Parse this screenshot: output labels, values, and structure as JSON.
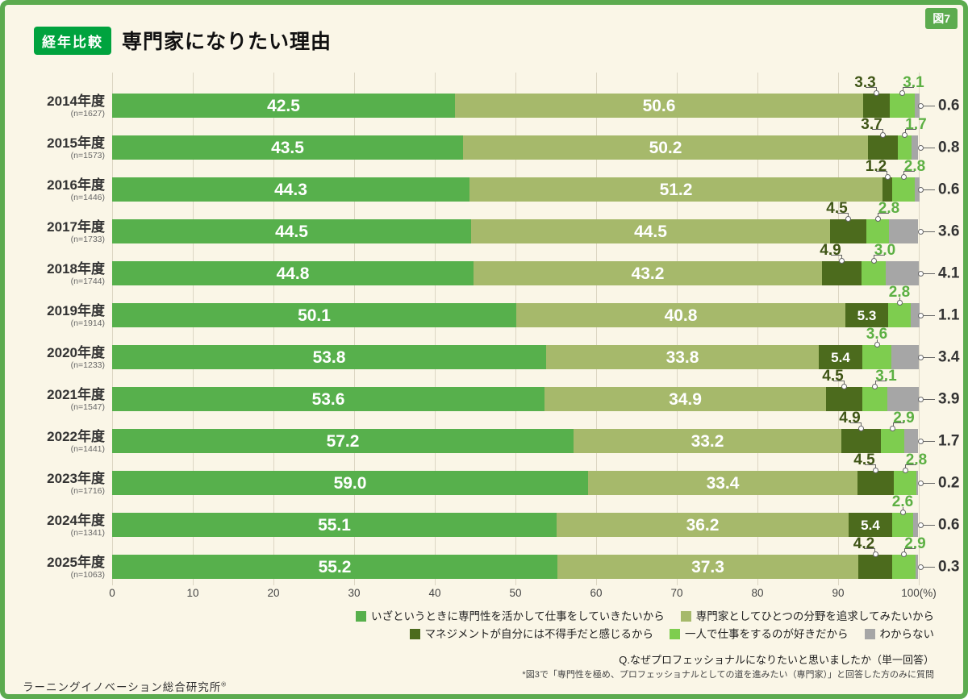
{
  "figure_tag": "図7",
  "header": {
    "badge": "経年比較",
    "title": "専門家になりたい理由"
  },
  "colors": {
    "frame": "#5cab4f",
    "badge_bg": "#00a33e",
    "background": "#faf6e7",
    "series": [
      "#57b04c",
      "#a6b96b",
      "#4c6b1d",
      "#7ecd4f",
      "#a6a6a6"
    ],
    "callout_dark": "#3f5516",
    "callout_light": "#5cb043",
    "callout_gray": "#333333"
  },
  "axis": {
    "tick_labels": [
      "0",
      "10",
      "20",
      "30",
      "40",
      "50",
      "60",
      "70",
      "80",
      "90",
      "100(%)"
    ]
  },
  "legend": {
    "rows": [
      [
        {
          "label": "いざというときに専門性を活かして仕事をしていきたいから",
          "series": 0
        },
        {
          "label": "専門家としてひとつの分野を追求してみたいから",
          "series": 1
        }
      ],
      [
        {
          "label": "マネジメントが自分には不得手だと感じるから",
          "series": 2
        },
        {
          "label": "一人で仕事をするのが好きだから",
          "series": 3
        },
        {
          "label": "わからない",
          "series": 4
        }
      ]
    ]
  },
  "footer": {
    "question": "Q.なぜプロフェッショナルになりたいと思いましたか（単一回答）",
    "note": "*図3で「専門性を極め、プロフェッショナルとしての道を進みたい（専門家）」と回答した方のみに質問",
    "source": "ラーニングイノベーション総合研究所",
    "source_mark": "®"
  },
  "chart_data": {
    "type": "bar",
    "stacked": true,
    "orientation": "horizontal",
    "xlim": [
      0,
      100
    ],
    "title": "専門家になりたい理由",
    "categories": [
      "2014年度",
      "2015年度",
      "2016年度",
      "2017年度",
      "2018年度",
      "2019年度",
      "2020年度",
      "2021年度",
      "2022年度",
      "2023年度",
      "2024年度",
      "2025年度"
    ],
    "sample_sizes": [
      "(n=1627)",
      "(n=1573)",
      "(n=1446)",
      "(n=1733)",
      "(n=1744)",
      "(n=1914)",
      "(n=1233)",
      "(n=1547)",
      "(n=1441)",
      "(n=1716)",
      "(n=1341)",
      "(n=1063)"
    ],
    "series": [
      {
        "name": "いざというときに専門性を活かして仕事をしていきたいから",
        "values": [
          42.5,
          43.5,
          44.3,
          44.5,
          44.8,
          50.1,
          53.8,
          53.6,
          57.2,
          59.0,
          55.1,
          55.2
        ]
      },
      {
        "name": "専門家としてひとつの分野を追求してみたいから",
        "values": [
          50.6,
          50.2,
          51.2,
          44.5,
          43.2,
          40.8,
          33.8,
          34.9,
          33.2,
          33.4,
          36.2,
          37.3
        ]
      },
      {
        "name": "マネジメントが自分には不得手だと感じるから",
        "values": [
          3.3,
          3.7,
          1.2,
          4.5,
          4.9,
          5.3,
          5.4,
          4.5,
          4.9,
          4.5,
          5.4,
          4.2
        ]
      },
      {
        "name": "一人で仕事をするのが好きだから",
        "values": [
          3.1,
          1.7,
          2.8,
          2.8,
          3.0,
          2.8,
          3.6,
          3.1,
          2.9,
          2.8,
          2.6,
          2.9
        ]
      },
      {
        "name": "わからない",
        "values": [
          0.6,
          0.8,
          0.6,
          3.6,
          4.1,
          1.1,
          3.4,
          3.9,
          1.7,
          0.2,
          0.6,
          0.3
        ]
      }
    ]
  }
}
